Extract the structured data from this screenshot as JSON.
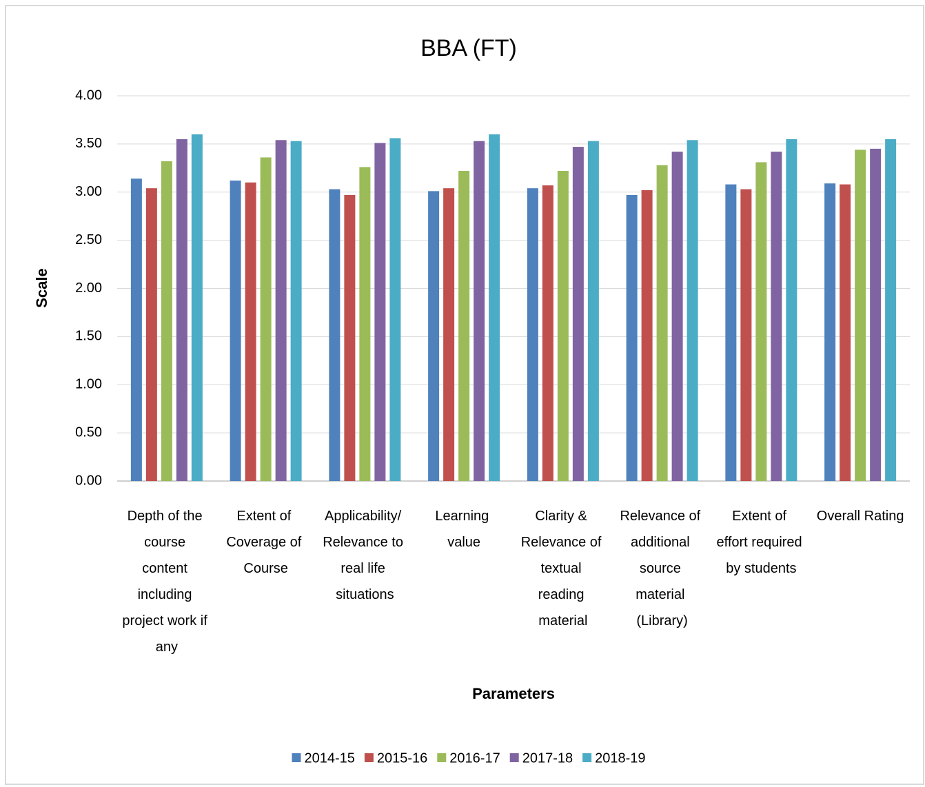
{
  "chart_data": {
    "type": "bar",
    "title": "BBA (FT)",
    "x_label": "Parameters",
    "y_label": "Scale",
    "categories": [
      "Depth of the course content including project work if any",
      "Extent of Coverage of Course",
      "Applicability/ Relevance to real life situations",
      "Learning value",
      "Clarity & Relevance of textual reading material",
      "Relevance of additional source material (Library)",
      "Extent of effort required by students",
      "Overall Rating"
    ],
    "series": [
      {
        "name": "2014-15",
        "color": "#4f81bd",
        "values": [
          3.14,
          3.12,
          3.03,
          3.01,
          3.04,
          2.97,
          3.08,
          3.09
        ]
      },
      {
        "name": "2015-16",
        "color": "#c0504d",
        "values": [
          3.04,
          3.1,
          2.97,
          3.04,
          3.07,
          3.02,
          3.03,
          3.08
        ]
      },
      {
        "name": "2016-17",
        "color": "#9bbb59",
        "values": [
          3.32,
          3.36,
          3.26,
          3.22,
          3.22,
          3.28,
          3.31,
          3.44
        ]
      },
      {
        "name": "2017-18",
        "color": "#8064a2",
        "values": [
          3.55,
          3.54,
          3.51,
          3.53,
          3.47,
          3.42,
          3.42,
          3.45
        ]
      },
      {
        "name": "2018-19",
        "color": "#4bacc6",
        "values": [
          3.6,
          3.53,
          3.56,
          3.6,
          3.53,
          3.54,
          3.55,
          3.55
        ]
      }
    ],
    "ylim": [
      0,
      4
    ],
    "yticks": [
      {
        "value": 0,
        "label": "0.00"
      },
      {
        "value": 0.5,
        "label": "0.50"
      },
      {
        "value": 1,
        "label": "1.00"
      },
      {
        "value": 1.5,
        "label": "1.50"
      },
      {
        "value": 2,
        "label": "2.00"
      },
      {
        "value": 2.5,
        "label": "2.50"
      },
      {
        "value": 3,
        "label": "3.00"
      },
      {
        "value": 3.5,
        "label": "3.50"
      },
      {
        "value": 4,
        "label": "4.00"
      }
    ],
    "grid": true,
    "legend": "bottom"
  }
}
